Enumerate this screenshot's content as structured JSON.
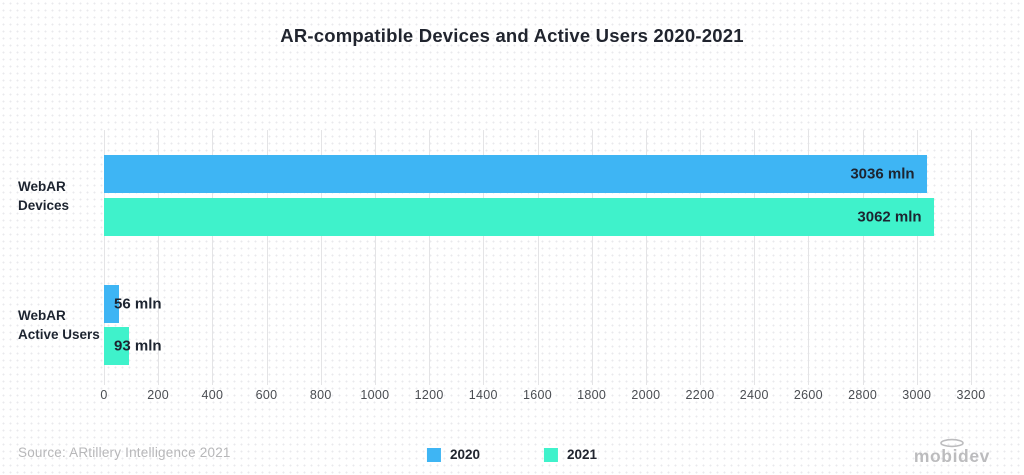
{
  "title": "AR-compatible Devices and Active Users 2020-2021",
  "chart_data": {
    "type": "bar",
    "orientation": "horizontal",
    "title": "AR-compatible Devices and Active Users 2020-2021",
    "categories": [
      {
        "lines": [
          "WebAR",
          "Devices"
        ]
      },
      {
        "lines": [
          "WebAR",
          "Active Users"
        ]
      }
    ],
    "series": [
      {
        "name": "2020",
        "color": "#3eb5f4",
        "values": [
          3036,
          56
        ]
      },
      {
        "name": "2021",
        "color": "#3ff2cb",
        "values": [
          3062,
          93
        ]
      }
    ],
    "value_suffix": " mln",
    "value_labels": [
      [
        "3036 mln",
        "56 mln"
      ],
      [
        "3062 mln",
        "93 mln"
      ]
    ],
    "xlim": [
      0,
      3200
    ],
    "tick_step": 200,
    "ticks": [
      "0",
      "200",
      "400",
      "600",
      "800",
      "1000",
      "1200",
      "1400",
      "1600",
      "1800",
      "2000",
      "2200",
      "2400",
      "2600",
      "2800",
      "3000",
      "3200"
    ],
    "grid": true,
    "legend_position": "bottom"
  },
  "footer": {
    "source": "Source: ARtillery Intelligence 2021",
    "legend": [
      {
        "label": "2020",
        "color": "#3eb5f4"
      },
      {
        "label": "2021",
        "color": "#3ff2cb"
      }
    ],
    "logo": "mobidev"
  }
}
